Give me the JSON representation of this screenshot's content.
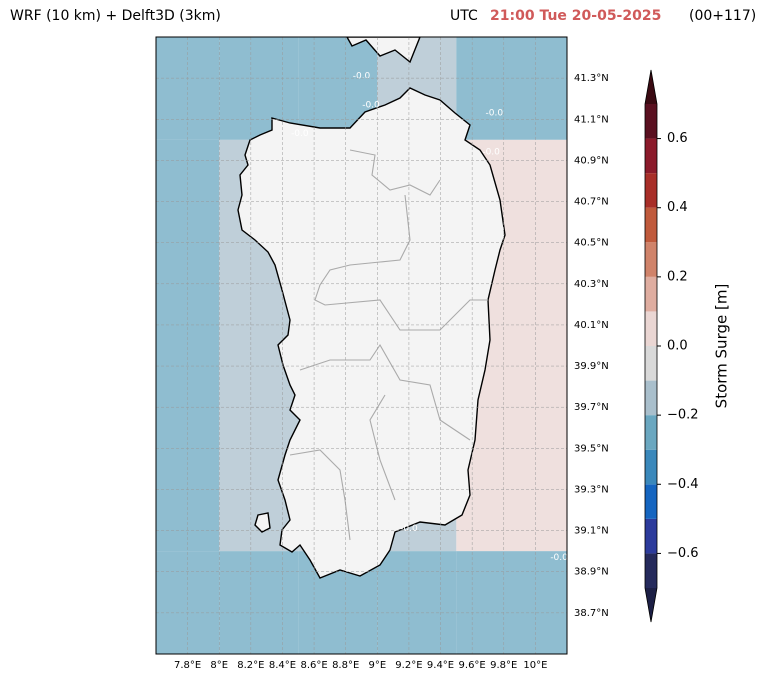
{
  "chart_data": {
    "type": "map",
    "title_left": "WRF (10 km) + Delft3D (3km)",
    "title_utc": "UTC",
    "title_time": "21:00 Tue 20-05-2025",
    "title_step": "(00+117)",
    "xlim": [
      7.6,
      10.2
    ],
    "ylim": [
      38.5,
      41.5
    ],
    "xticks": [
      {
        "value": 7.8,
        "label": "7.8°E"
      },
      {
        "value": 8.0,
        "label": "8°E"
      },
      {
        "value": 8.2,
        "label": "8.2°E"
      },
      {
        "value": 8.4,
        "label": "8.4°E"
      },
      {
        "value": 8.6,
        "label": "8.6°E"
      },
      {
        "value": 8.8,
        "label": "8.8°E"
      },
      {
        "value": 9.0,
        "label": "9°E"
      },
      {
        "value": 9.2,
        "label": "9.2°E"
      },
      {
        "value": 9.4,
        "label": "9.4°E"
      },
      {
        "value": 9.6,
        "label": "9.6°E"
      },
      {
        "value": 9.8,
        "label": "9.8°E"
      },
      {
        "value": 10.0,
        "label": "10°E"
      }
    ],
    "yticks": [
      {
        "value": 38.7,
        "label": "38.7°N"
      },
      {
        "value": 38.9,
        "label": "38.9°N"
      },
      {
        "value": 39.1,
        "label": "39.1°N"
      },
      {
        "value": 39.3,
        "label": "39.3°N"
      },
      {
        "value": 39.5,
        "label": "39.5°N"
      },
      {
        "value": 39.7,
        "label": "39.7°N"
      },
      {
        "value": 39.9,
        "label": "39.9°N"
      },
      {
        "value": 40.1,
        "label": "40.1°N"
      },
      {
        "value": 40.3,
        "label": "40.3°N"
      },
      {
        "value": 40.5,
        "label": "40.5°N"
      },
      {
        "value": 40.7,
        "label": "40.7°N"
      },
      {
        "value": 40.9,
        "label": "40.9°N"
      },
      {
        "value": 41.1,
        "label": "41.1°N"
      },
      {
        "value": 41.3,
        "label": "41.3°N"
      }
    ],
    "grid": true,
    "surge_grid": {
      "lon_edges": [
        7.6,
        8.0,
        8.5,
        9.0,
        9.5,
        10.2
      ],
      "lat_edges": [
        41.5,
        41.0,
        40.0,
        39.0,
        38.5
      ],
      "values": [
        [
          -0.25,
          -0.25,
          -0.25,
          -0.15,
          -0.25
        ],
        [
          -0.25,
          -0.15,
          -0.15,
          -0.15,
          0.05
        ],
        [
          -0.25,
          -0.15,
          -0.15,
          -0.15,
          0.05
        ],
        [
          -0.25,
          -0.25,
          -0.25,
          -0.25,
          -0.25
        ]
      ]
    },
    "contour_labels": [
      {
        "label": "-0.0",
        "lon": 8.9,
        "lat": 41.31
      },
      {
        "label": "-0.0",
        "lon": 8.96,
        "lat": 41.17
      },
      {
        "label": "-0.0",
        "lon": 8.51,
        "lat": 41.03
      },
      {
        "label": "-0.0",
        "lon": 9.74,
        "lat": 41.13
      },
      {
        "label": "-0.0",
        "lon": 9.72,
        "lat": 40.94
      },
      {
        "label": "-0.0",
        "lon": 9.2,
        "lat": 39.11
      },
      {
        "label": "-0.0",
        "lon": 10.15,
        "lat": 38.97
      }
    ],
    "colorbar": {
      "label": "Storm Surge [m]",
      "levels": [
        -0.7,
        -0.6,
        -0.5,
        -0.4,
        -0.3,
        -0.2,
        -0.1,
        0.0,
        0.1,
        0.2,
        0.3,
        0.4,
        0.5,
        0.6,
        0.7
      ],
      "colors": [
        "#252a5c",
        "#2c3b9c",
        "#1565c0",
        "#3a88bb",
        "#6aa7c0",
        "#a9bfcc",
        "#d9d9d9",
        "#ead6d3",
        "#dfada0",
        "#d0836a",
        "#c05a3c",
        "#a82e28",
        "#8b1a2a",
        "#5a1020"
      ],
      "under_color": "#1c1f45",
      "over_color": "#3a0a12",
      "ticks": [
        {
          "value": -0.6,
          "label": "−0.6"
        },
        {
          "value": -0.4,
          "label": "−0.4"
        },
        {
          "value": -0.2,
          "label": "−0.2"
        },
        {
          "value": 0.0,
          "label": "0.0"
        },
        0.2,
        0.4,
        0.6
      ]
    }
  }
}
